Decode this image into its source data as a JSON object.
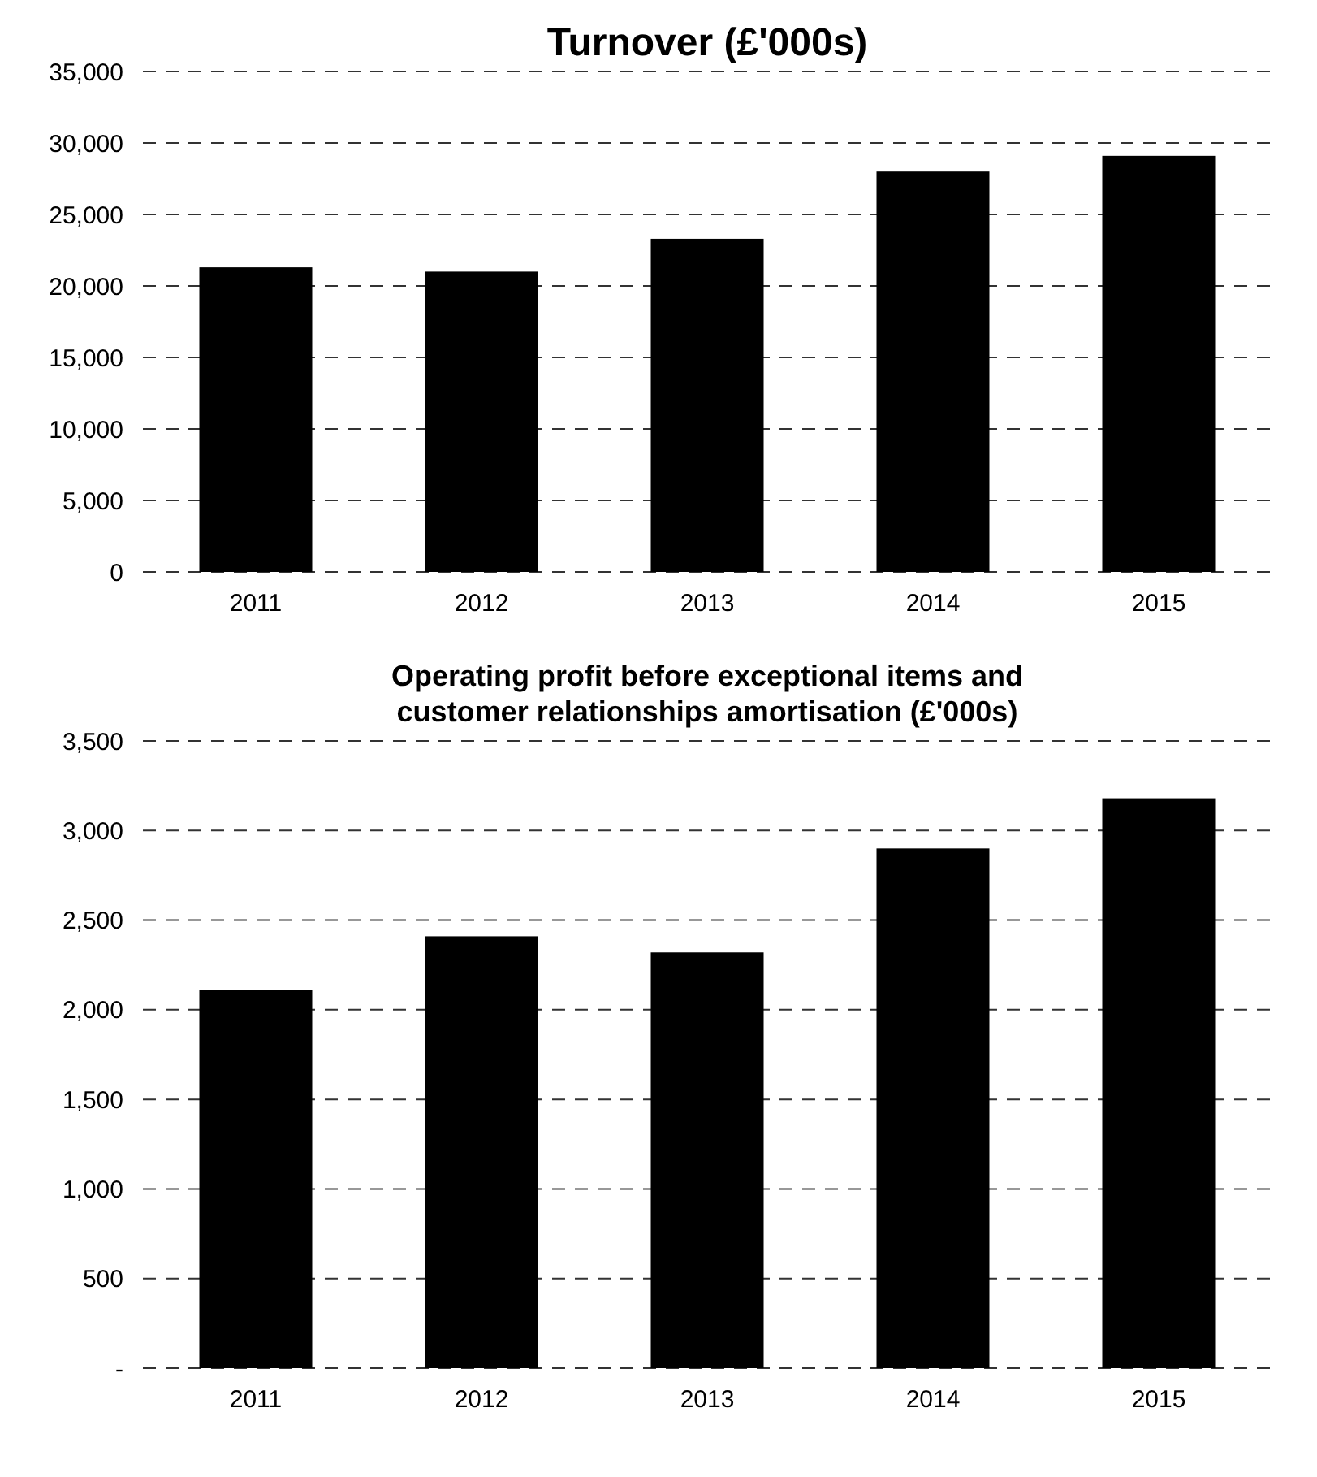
{
  "chart_data": [
    {
      "type": "bar",
      "title": "Turnover (£'000s)",
      "categories": [
        "2011",
        "2012",
        "2013",
        "2014",
        "2015"
      ],
      "values": [
        21300,
        21000,
        23300,
        28000,
        29100
      ],
      "color": "#000000",
      "ylim": [
        0,
        35000
      ],
      "yticks": [
        {
          "value": 0,
          "label": "0"
        },
        {
          "value": 5000,
          "label": "5,000"
        },
        {
          "value": 10000,
          "label": "10,000"
        },
        {
          "value": 15000,
          "label": "15,000"
        },
        {
          "value": 20000,
          "label": "20,000"
        },
        {
          "value": 25000,
          "label": "25,000"
        },
        {
          "value": 30000,
          "label": "30,000"
        },
        {
          "value": 35000,
          "label": "35,000"
        }
      ],
      "grid": "y",
      "line_style": "dashed"
    },
    {
      "type": "bar",
      "title": "Operating profit before exceptional items and customer relationships amortisation (£'000s)",
      "categories": [
        "2011",
        "2012",
        "2013",
        "2014",
        "2015"
      ],
      "values": [
        2110,
        2410,
        2320,
        2900,
        3180
      ],
      "color": "#000000",
      "ylim": [
        0,
        3500
      ],
      "yticks": [
        {
          "value": 0,
          "label": "-"
        },
        {
          "value": 500,
          "label": "500"
        },
        {
          "value": 1000,
          "label": "1,000"
        },
        {
          "value": 1500,
          "label": "1,500"
        },
        {
          "value": 2000,
          "label": "2,000"
        },
        {
          "value": 2500,
          "label": "2,500"
        },
        {
          "value": 3000,
          "label": "3,000"
        },
        {
          "value": 3500,
          "label": "3,500"
        }
      ],
      "grid": "y",
      "line_style": "dashed"
    }
  ]
}
